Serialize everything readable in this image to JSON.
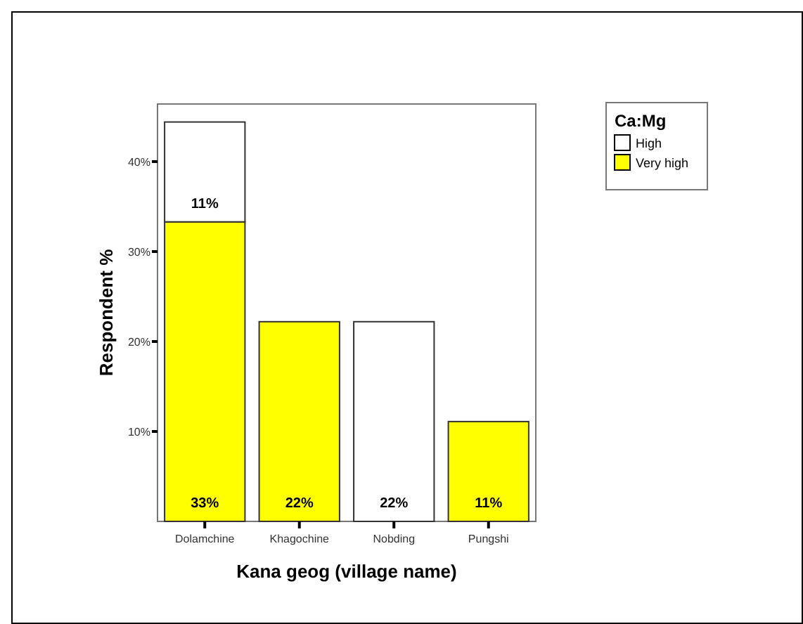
{
  "chart_data": {
    "type": "bar",
    "xlabel": "Kana geog (village name)",
    "ylabel": "Respondent %",
    "legend_title": "Ca:Mg",
    "categories": [
      "Dolamchine",
      "Khagochine",
      "Nobding",
      "Pungshi"
    ],
    "series": [
      {
        "name": "Very high",
        "color": "#ffff00",
        "values": [
          33.3,
          22.2,
          null,
          11.1
        ],
        "value_labels": [
          "33%",
          "22%",
          null,
          "11%"
        ]
      },
      {
        "name": "High",
        "color": "#ffffff",
        "values": [
          11.1,
          null,
          22.2,
          null
        ],
        "value_labels": [
          "11%",
          null,
          "22%",
          null
        ]
      }
    ],
    "stacked": true,
    "ylim": [
      0,
      46.4
    ],
    "yticks": [
      {
        "value": 10,
        "label": "10%"
      },
      {
        "value": 20,
        "label": "20%"
      },
      {
        "value": 30,
        "label": "30%"
      },
      {
        "value": 40,
        "label": "40%"
      }
    ],
    "grid": false,
    "legend": "top right"
  }
}
